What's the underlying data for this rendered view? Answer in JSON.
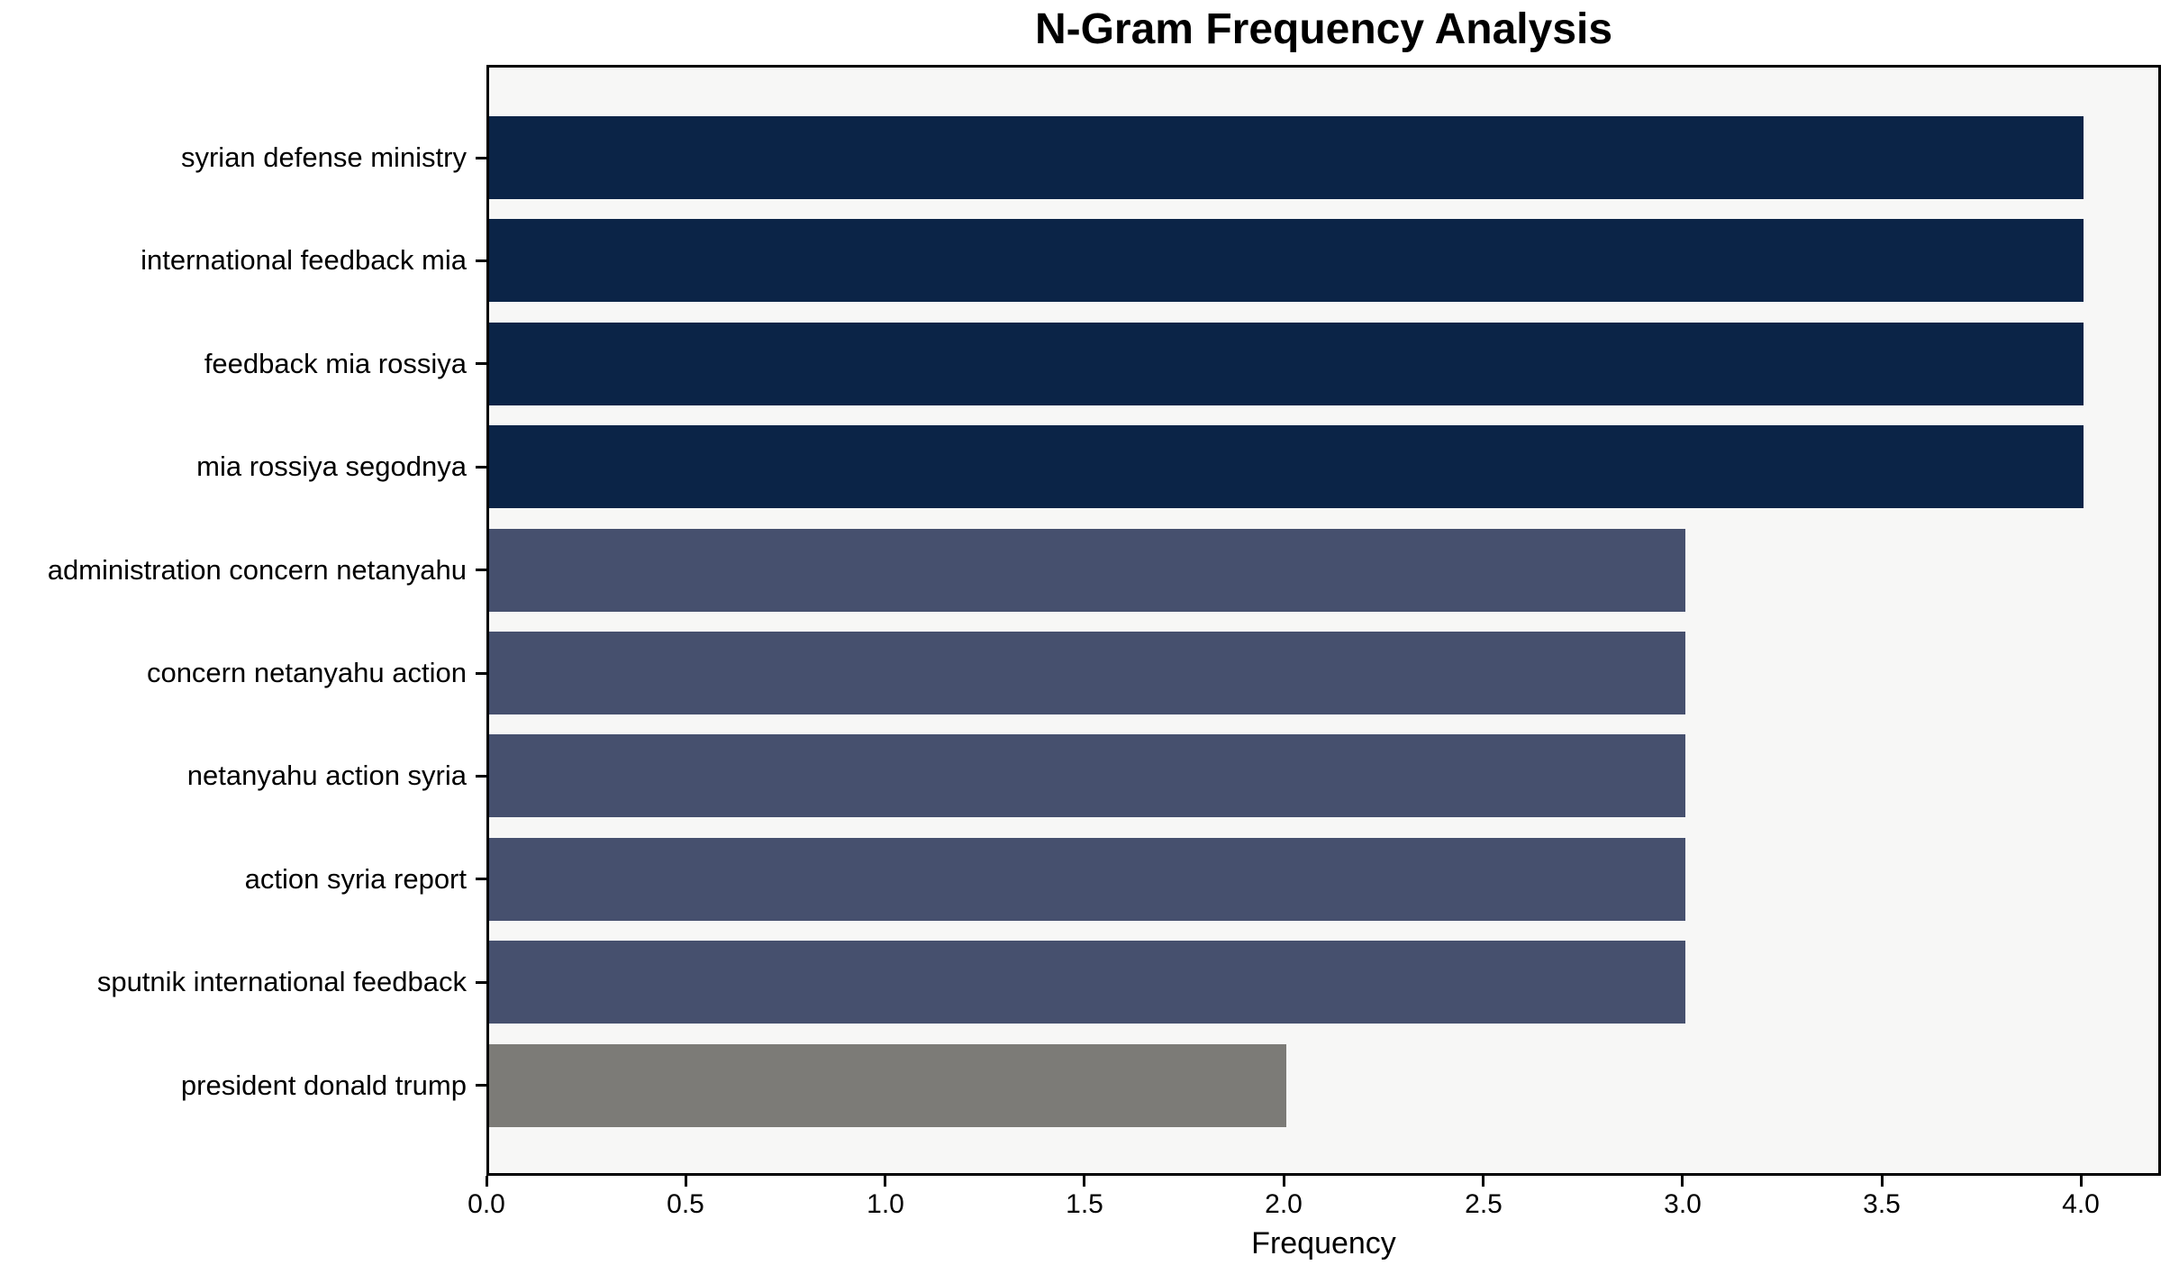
{
  "chart_data": {
    "type": "bar",
    "orientation": "horizontal",
    "title": "N-Gram Frequency Analysis",
    "xlabel": "Frequency",
    "ylabel": "",
    "categories": [
      "syrian defense ministry",
      "international feedback mia",
      "feedback mia rossiya",
      "mia rossiya segodnya",
      "administration concern netanyahu",
      "concern netanyahu action",
      "netanyahu action syria",
      "action syria report",
      "sputnik international feedback",
      "president donald trump"
    ],
    "values": [
      4,
      4,
      4,
      4,
      3,
      3,
      3,
      3,
      3,
      2
    ],
    "bar_colors": [
      "#0b2447",
      "#0b2447",
      "#0b2447",
      "#0b2447",
      "#46506e",
      "#46506e",
      "#46506e",
      "#46506e",
      "#46506e",
      "#7c7b77"
    ],
    "xticks": [
      0.0,
      0.5,
      1.0,
      1.5,
      2.0,
      2.5,
      3.0,
      3.5,
      4.0
    ],
    "xtick_labels": [
      "0.0",
      "0.5",
      "1.0",
      "1.5",
      "2.0",
      "2.5",
      "3.0",
      "3.5",
      "4.0"
    ],
    "xlim": [
      0,
      4.2
    ],
    "grid": false,
    "legend": null,
    "plot_background": "#f7f7f6",
    "figure_background": "#ffffff",
    "spine_color": "#000000",
    "text_color": "#000000"
  }
}
